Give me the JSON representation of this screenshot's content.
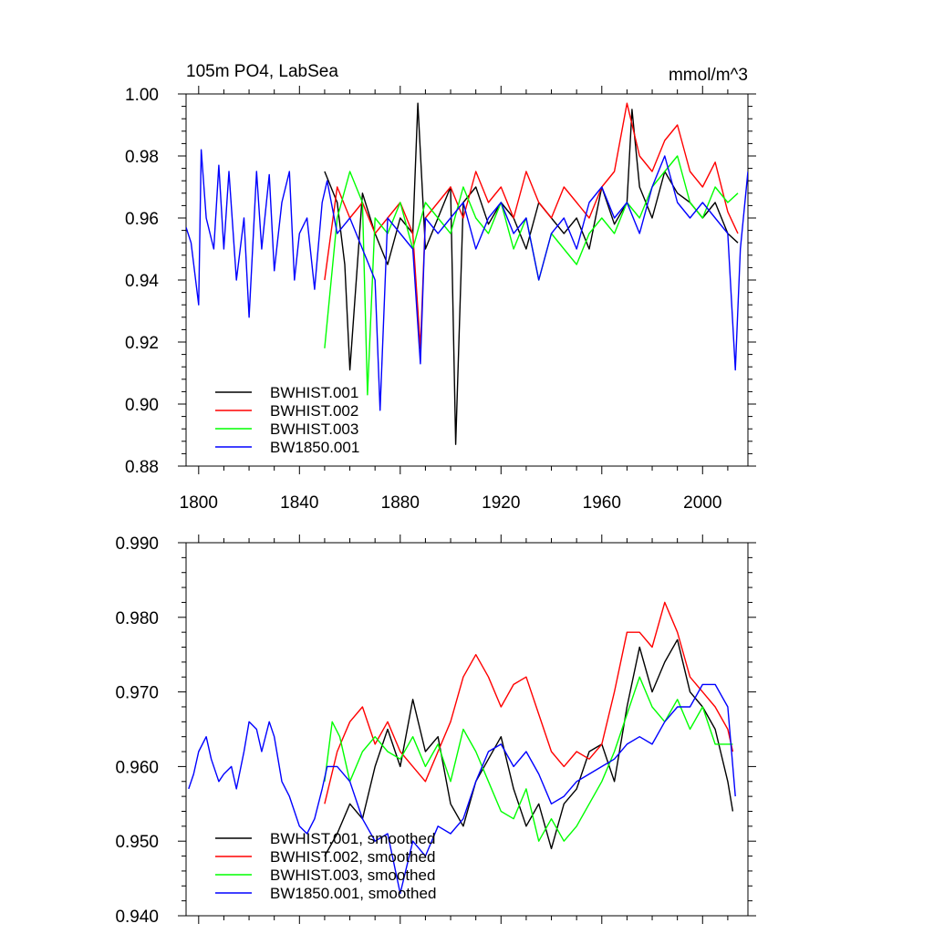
{
  "top": {
    "title_left": "105m PO4, LabSea",
    "title_right": "mmol/m^3",
    "x_ticks": [
      1800,
      1840,
      1880,
      1920,
      1960,
      2000
    ],
    "y_ticks": [
      "0.88",
      "0.90",
      "0.92",
      "0.94",
      "0.96",
      "0.98",
      "1.00"
    ],
    "legend": [
      {
        "label": "BWHIST.001",
        "color": "#000000"
      },
      {
        "label": "BWHIST.002",
        "color": "#ff0000"
      },
      {
        "label": "BWHIST.003",
        "color": "#00ff00"
      },
      {
        "label": "BW1850.001",
        "color": "#0000ff"
      }
    ]
  },
  "bottom": {
    "y_ticks": [
      "0.940",
      "0.950",
      "0.960",
      "0.970",
      "0.980",
      "0.990"
    ],
    "legend": [
      {
        "label": "BWHIST.001, smoothed",
        "color": "#000000"
      },
      {
        "label": "BWHIST.002, smoothed",
        "color": "#ff0000"
      },
      {
        "label": "BWHIST.003, smoothed",
        "color": "#00ff00"
      },
      {
        "label": "BW1850.001, smoothed",
        "color": "#0000ff"
      }
    ]
  },
  "chart_data": [
    {
      "type": "line",
      "title": "105m PO4, LabSea",
      "units": "mmol/m^3",
      "xlim": [
        1795,
        2018
      ],
      "ylim": [
        0.88,
        1.0
      ],
      "series": [
        {
          "name": "BWHIST.001",
          "color": "#000000",
          "x": [
            1850,
            1855,
            1858,
            1860,
            1865,
            1870,
            1875,
            1880,
            1885,
            1887,
            1890,
            1895,
            1900,
            1902,
            1905,
            1910,
            1915,
            1920,
            1925,
            1930,
            1935,
            1940,
            1945,
            1950,
            1955,
            1960,
            1965,
            1970,
            1972,
            1975,
            1980,
            1985,
            1990,
            1995,
            2000,
            2005,
            2010,
            2014
          ],
          "y": [
            0.975,
            0.965,
            0.945,
            0.911,
            0.968,
            0.955,
            0.945,
            0.96,
            0.955,
            0.997,
            0.95,
            0.96,
            0.97,
            0.887,
            0.965,
            0.97,
            0.958,
            0.965,
            0.96,
            0.95,
            0.965,
            0.96,
            0.955,
            0.96,
            0.95,
            0.97,
            0.958,
            0.965,
            0.995,
            0.97,
            0.96,
            0.975,
            0.968,
            0.965,
            0.96,
            0.965,
            0.955,
            0.952
          ]
        },
        {
          "name": "BWHIST.002",
          "color": "#ff0000",
          "x": [
            1850,
            1855,
            1860,
            1865,
            1870,
            1875,
            1880,
            1885,
            1888,
            1890,
            1895,
            1900,
            1905,
            1910,
            1915,
            1920,
            1925,
            1930,
            1935,
            1940,
            1945,
            1950,
            1955,
            1960,
            1965,
            1970,
            1975,
            1980,
            1985,
            1990,
            1995,
            2000,
            2005,
            2010,
            2014
          ],
          "y": [
            0.94,
            0.97,
            0.96,
            0.965,
            0.955,
            0.96,
            0.965,
            0.955,
            0.918,
            0.96,
            0.965,
            0.97,
            0.96,
            0.975,
            0.965,
            0.97,
            0.96,
            0.975,
            0.965,
            0.96,
            0.97,
            0.965,
            0.96,
            0.97,
            0.975,
            0.997,
            0.98,
            0.975,
            0.985,
            0.99,
            0.975,
            0.97,
            0.978,
            0.962,
            0.955
          ]
        },
        {
          "name": "BWHIST.003",
          "color": "#00ff00",
          "x": [
            1850,
            1855,
            1860,
            1865,
            1867,
            1870,
            1875,
            1880,
            1885,
            1890,
            1895,
            1900,
            1905,
            1910,
            1915,
            1920,
            1925,
            1930,
            1935,
            1940,
            1945,
            1950,
            1955,
            1960,
            1965,
            1970,
            1975,
            1980,
            1985,
            1990,
            1995,
            2000,
            2005,
            2010,
            2014
          ],
          "y": [
            0.918,
            0.96,
            0.975,
            0.965,
            0.903,
            0.96,
            0.955,
            0.965,
            0.95,
            0.965,
            0.96,
            0.955,
            0.97,
            0.96,
            0.955,
            0.965,
            0.95,
            0.96,
            0.94,
            0.955,
            0.95,
            0.945,
            0.955,
            0.96,
            0.955,
            0.965,
            0.96,
            0.97,
            0.975,
            0.98,
            0.965,
            0.96,
            0.97,
            0.965,
            0.968
          ]
        },
        {
          "name": "BW1850.001",
          "color": "#0000ff",
          "x": [
            1795,
            1797,
            1800,
            1801,
            1803,
            1806,
            1808,
            1810,
            1812,
            1815,
            1818,
            1820,
            1823,
            1825,
            1828,
            1830,
            1833,
            1836,
            1838,
            1840,
            1843,
            1846,
            1849,
            1851,
            1855,
            1860,
            1865,
            1870,
            1872,
            1875,
            1880,
            1885,
            1888,
            1890,
            1895,
            1900,
            1905,
            1910,
            1915,
            1920,
            1925,
            1930,
            1935,
            1940,
            1945,
            1950,
            1955,
            1960,
            1965,
            1970,
            1975,
            1980,
            1985,
            1990,
            1995,
            2000,
            2005,
            2010,
            2013,
            2015,
            2018
          ],
          "y": [
            0.957,
            0.952,
            0.932,
            0.982,
            0.96,
            0.95,
            0.977,
            0.95,
            0.975,
            0.94,
            0.96,
            0.928,
            0.975,
            0.95,
            0.974,
            0.943,
            0.965,
            0.975,
            0.94,
            0.955,
            0.96,
            0.937,
            0.965,
            0.972,
            0.955,
            0.96,
            0.95,
            0.94,
            0.898,
            0.96,
            0.955,
            0.95,
            0.913,
            0.96,
            0.955,
            0.96,
            0.965,
            0.95,
            0.96,
            0.965,
            0.955,
            0.96,
            0.94,
            0.955,
            0.96,
            0.95,
            0.965,
            0.97,
            0.96,
            0.965,
            0.955,
            0.97,
            0.98,
            0.965,
            0.96,
            0.965,
            0.96,
            0.955,
            0.911,
            0.95,
            0.975
          ]
        }
      ]
    },
    {
      "type": "line",
      "title": "",
      "xlim": [
        1795,
        2018
      ],
      "ylim": [
        0.94,
        0.99
      ],
      "series": [
        {
          "name": "BWHIST.001, smoothed",
          "color": "#000000",
          "x": [
            1850,
            1855,
            1860,
            1865,
            1870,
            1875,
            1880,
            1885,
            1890,
            1895,
            1900,
            1905,
            1910,
            1915,
            1920,
            1925,
            1930,
            1935,
            1940,
            1945,
            1950,
            1955,
            1960,
            1965,
            1970,
            1975,
            1980,
            1985,
            1990,
            1995,
            2000,
            2005,
            2010,
            2012
          ],
          "y": [
            0.948,
            0.951,
            0.955,
            0.953,
            0.96,
            0.965,
            0.96,
            0.969,
            0.962,
            0.964,
            0.955,
            0.952,
            0.958,
            0.961,
            0.964,
            0.957,
            0.952,
            0.955,
            0.949,
            0.955,
            0.957,
            0.962,
            0.963,
            0.958,
            0.968,
            0.976,
            0.97,
            0.974,
            0.977,
            0.97,
            0.968,
            0.965,
            0.958,
            0.954
          ]
        },
        {
          "name": "BWHIST.002, smoothed",
          "color": "#ff0000",
          "x": [
            1850,
            1855,
            1860,
            1865,
            1870,
            1875,
            1880,
            1885,
            1890,
            1895,
            1900,
            1905,
            1910,
            1915,
            1920,
            1925,
            1930,
            1935,
            1940,
            1945,
            1950,
            1955,
            1960,
            1965,
            1970,
            1975,
            1980,
            1985,
            1990,
            1995,
            2000,
            2005,
            2010,
            2012
          ],
          "y": [
            0.955,
            0.962,
            0.966,
            0.968,
            0.963,
            0.966,
            0.962,
            0.96,
            0.958,
            0.962,
            0.966,
            0.972,
            0.975,
            0.972,
            0.968,
            0.971,
            0.972,
            0.967,
            0.962,
            0.96,
            0.962,
            0.961,
            0.963,
            0.97,
            0.978,
            0.978,
            0.976,
            0.982,
            0.978,
            0.972,
            0.97,
            0.968,
            0.965,
            0.962
          ]
        },
        {
          "name": "BWHIST.003, smoothed",
          "color": "#00ff00",
          "x": [
            1850,
            1853,
            1856,
            1860,
            1865,
            1870,
            1875,
            1880,
            1885,
            1890,
            1895,
            1900,
            1905,
            1910,
            1915,
            1920,
            1925,
            1930,
            1935,
            1940,
            1945,
            1950,
            1955,
            1960,
            1965,
            1970,
            1975,
            1980,
            1985,
            1990,
            1995,
            2000,
            2005,
            2010,
            2012
          ],
          "y": [
            0.958,
            0.966,
            0.964,
            0.958,
            0.962,
            0.964,
            0.962,
            0.961,
            0.964,
            0.96,
            0.963,
            0.958,
            0.965,
            0.962,
            0.958,
            0.954,
            0.953,
            0.957,
            0.95,
            0.953,
            0.95,
            0.952,
            0.955,
            0.958,
            0.962,
            0.967,
            0.972,
            0.968,
            0.966,
            0.969,
            0.965,
            0.968,
            0.963,
            0.963,
            0.963
          ]
        },
        {
          "name": "BW1850.001, smoothed",
          "color": "#0000ff",
          "x": [
            1796,
            1798,
            1800,
            1803,
            1805,
            1808,
            1810,
            1813,
            1815,
            1818,
            1820,
            1823,
            1825,
            1828,
            1830,
            1833,
            1836,
            1840,
            1843,
            1846,
            1849,
            1851,
            1855,
            1860,
            1865,
            1870,
            1875,
            1880,
            1885,
            1890,
            1895,
            1900,
            1905,
            1910,
            1915,
            1920,
            1925,
            1930,
            1935,
            1940,
            1945,
            1950,
            1955,
            1960,
            1965,
            1970,
            1975,
            1980,
            1985,
            1990,
            1995,
            2000,
            2005,
            2010,
            2013
          ],
          "y": [
            0.957,
            0.959,
            0.962,
            0.964,
            0.961,
            0.958,
            0.959,
            0.96,
            0.957,
            0.962,
            0.966,
            0.965,
            0.962,
            0.966,
            0.964,
            0.958,
            0.956,
            0.952,
            0.951,
            0.953,
            0.957,
            0.96,
            0.96,
            0.958,
            0.953,
            0.95,
            0.951,
            0.943,
            0.95,
            0.948,
            0.952,
            0.951,
            0.953,
            0.958,
            0.962,
            0.963,
            0.96,
            0.962,
            0.959,
            0.955,
            0.956,
            0.958,
            0.959,
            0.96,
            0.961,
            0.963,
            0.964,
            0.963,
            0.966,
            0.968,
            0.968,
            0.971,
            0.971,
            0.968,
            0.956
          ]
        }
      ]
    }
  ]
}
